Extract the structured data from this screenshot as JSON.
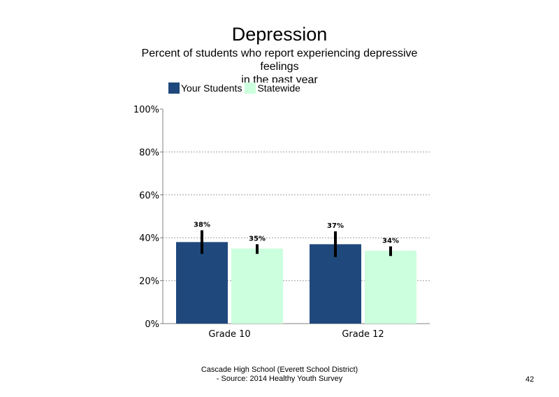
{
  "title": "Depression",
  "subtitle_lines": [
    "Percent of students who report experiencing depressive",
    "feelings",
    "in the past year"
  ],
  "footer": {
    "line1": "Cascade High School (Everett School District)",
    "line2": "- Source: 2014 Healthy Youth Survey"
  },
  "page_number": "42",
  "colors": {
    "your_students": "#1f497d",
    "statewide": "#ccffdd",
    "error_bar": "#000000",
    "grid": "#a0a0a0",
    "axis": "#808080"
  },
  "chart_data": {
    "type": "bar",
    "categories": [
      "Grade 10",
      "Grade 12"
    ],
    "series": [
      {
        "name": "Your Students",
        "values": [
          38,
          37
        ],
        "labels": [
          "38%",
          "37%"
        ],
        "error_low": [
          32.5,
          31
        ],
        "error_high": [
          43.5,
          43
        ]
      },
      {
        "name": "Statewide",
        "values": [
          35,
          34
        ],
        "labels": [
          "35%",
          "34%"
        ],
        "error_low": [
          32.5,
          31.5
        ],
        "error_high": [
          37,
          36
        ]
      }
    ],
    "ylim": [
      0,
      100
    ],
    "yticks": [
      0,
      20,
      40,
      60,
      80,
      100
    ],
    "ytick_labels": [
      "0%",
      "20%",
      "40%",
      "60%",
      "80%",
      "100%"
    ],
    "grid": true,
    "legend_position": "top-left"
  }
}
